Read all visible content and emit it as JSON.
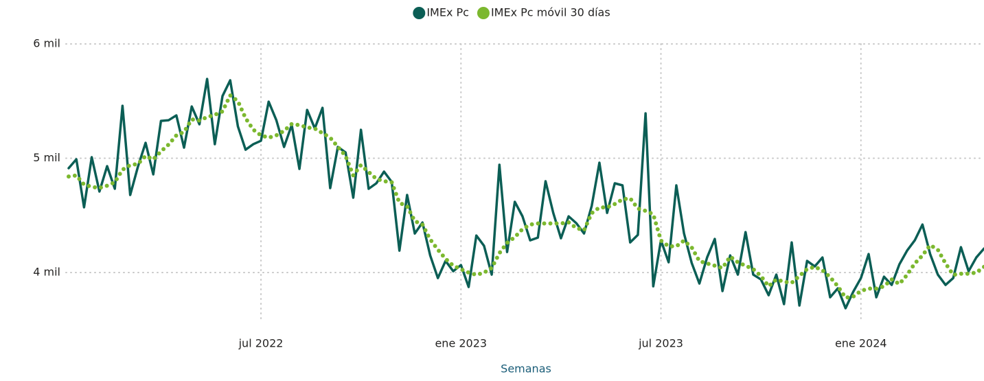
{
  "chart_data": {
    "type": "line",
    "x_label": "Semanas",
    "x": [
      0,
      1,
      2,
      3,
      4,
      5,
      6,
      7,
      8,
      9,
      10,
      11,
      12,
      13,
      14,
      15,
      16,
      17,
      18,
      19,
      20,
      21,
      22,
      23,
      24,
      25,
      26,
      27,
      28,
      29,
      30,
      31,
      32,
      33,
      34,
      35,
      36,
      37,
      38,
      39,
      40,
      41,
      42,
      43,
      44,
      45,
      46,
      47,
      48,
      49,
      50,
      51,
      52,
      53,
      54,
      55,
      56,
      57,
      58,
      59,
      60,
      61,
      62,
      63,
      64,
      65,
      66,
      67,
      68,
      69,
      70,
      71,
      72,
      73,
      74,
      75,
      76,
      77,
      78,
      79,
      80,
      81,
      82,
      83,
      84,
      85,
      86,
      87,
      88,
      89,
      90,
      91,
      92,
      93,
      94,
      95,
      96,
      97,
      98,
      99,
      100,
      101,
      102,
      103,
      104,
      105,
      106,
      107,
      108,
      109,
      110,
      111,
      112,
      113,
      114,
      115,
      116,
      117,
      118,
      119
    ],
    "series": [
      {
        "name": "IMEx Pc",
        "color": "#0b5e55",
        "style": "solid",
        "values": [
          4913,
          4991,
          4571,
          5009,
          4709,
          4931,
          4733,
          5459,
          4679,
          4925,
          5135,
          4859,
          5327,
          5333,
          5375,
          5093,
          5453,
          5297,
          5694,
          5123,
          5544,
          5682,
          5279,
          5075,
          5123,
          5153,
          5495,
          5333,
          5099,
          5291,
          4907,
          5423,
          5261,
          5441,
          4739,
          5099,
          5051,
          4655,
          5249,
          4733,
          4781,
          4883,
          4793,
          4192,
          4679,
          4342,
          4438,
          4150,
          3952,
          4102,
          4012,
          4066,
          3874,
          4324,
          4234,
          3982,
          4943,
          4180,
          4619,
          4492,
          4282,
          4306,
          4799,
          4522,
          4300,
          4492,
          4432,
          4342,
          4583,
          4961,
          4522,
          4781,
          4763,
          4264,
          4330,
          5393,
          3880,
          4282,
          4090,
          4763,
          4342,
          4084,
          3904,
          4132,
          4294,
          3838,
          4150,
          3982,
          4354,
          3982,
          3940,
          3802,
          3982,
          3724,
          4264,
          3712,
          4102,
          4054,
          4132,
          3784,
          3862,
          3688,
          3832,
          3952,
          4162,
          3784,
          3964,
          3892,
          4072,
          4192,
          4282,
          4420,
          4162,
          3982,
          3892,
          3952,
          4222,
          4012,
          4132,
          4210
        ]
      },
      {
        "name": "IMEx Pc móvil 30 días",
        "color": "#7cb82f",
        "style": "dotted",
        "values": [
          4840,
          4850,
          4770,
          4750,
          4740,
          4760,
          4790,
          4900,
          4940,
          4950,
          5020,
          4990,
          5060,
          5120,
          5200,
          5230,
          5340,
          5330,
          5360,
          5380,
          5410,
          5550,
          5500,
          5350,
          5250,
          5200,
          5180,
          5200,
          5240,
          5300,
          5290,
          5270,
          5260,
          5220,
          5180,
          5100,
          5020,
          4850,
          4940,
          4880,
          4820,
          4800,
          4790,
          4610,
          4580,
          4450,
          4420,
          4290,
          4200,
          4120,
          4060,
          4030,
          4000,
          3980,
          4000,
          4040,
          4170,
          4260,
          4310,
          4380,
          4420,
          4430,
          4430,
          4430,
          4430,
          4440,
          4390,
          4370,
          4520,
          4570,
          4570,
          4600,
          4640,
          4650,
          4560,
          4540,
          4510,
          4280,
          4230,
          4230,
          4280,
          4220,
          4100,
          4080,
          4060,
          4040,
          4140,
          4090,
          4060,
          4030,
          3970,
          3880,
          3940,
          3920,
          3910,
          3970,
          4030,
          4050,
          4020,
          3960,
          3880,
          3780,
          3790,
          3840,
          3860,
          3860,
          3880,
          3940,
          3900,
          3980,
          4080,
          4150,
          4240,
          4200,
          4080,
          3980,
          3990,
          3990,
          4000,
          4050
        ]
      }
    ],
    "xlim": [
      0,
      119
    ],
    "xticks": [
      {
        "value": 25,
        "label": "jul 2022"
      },
      {
        "value": 51,
        "label": "ene 2023"
      },
      {
        "value": 77,
        "label": "jul 2023"
      },
      {
        "value": 103,
        "label": "ene 2024"
      }
    ],
    "ylim": [
      3550,
      6000
    ],
    "yticks": [
      {
        "value": 4000,
        "label": "4 mil"
      },
      {
        "value": 5000,
        "label": "5 mil"
      },
      {
        "value": 6000,
        "label": "6 mil"
      }
    ],
    "grid": true,
    "legend": "top"
  }
}
